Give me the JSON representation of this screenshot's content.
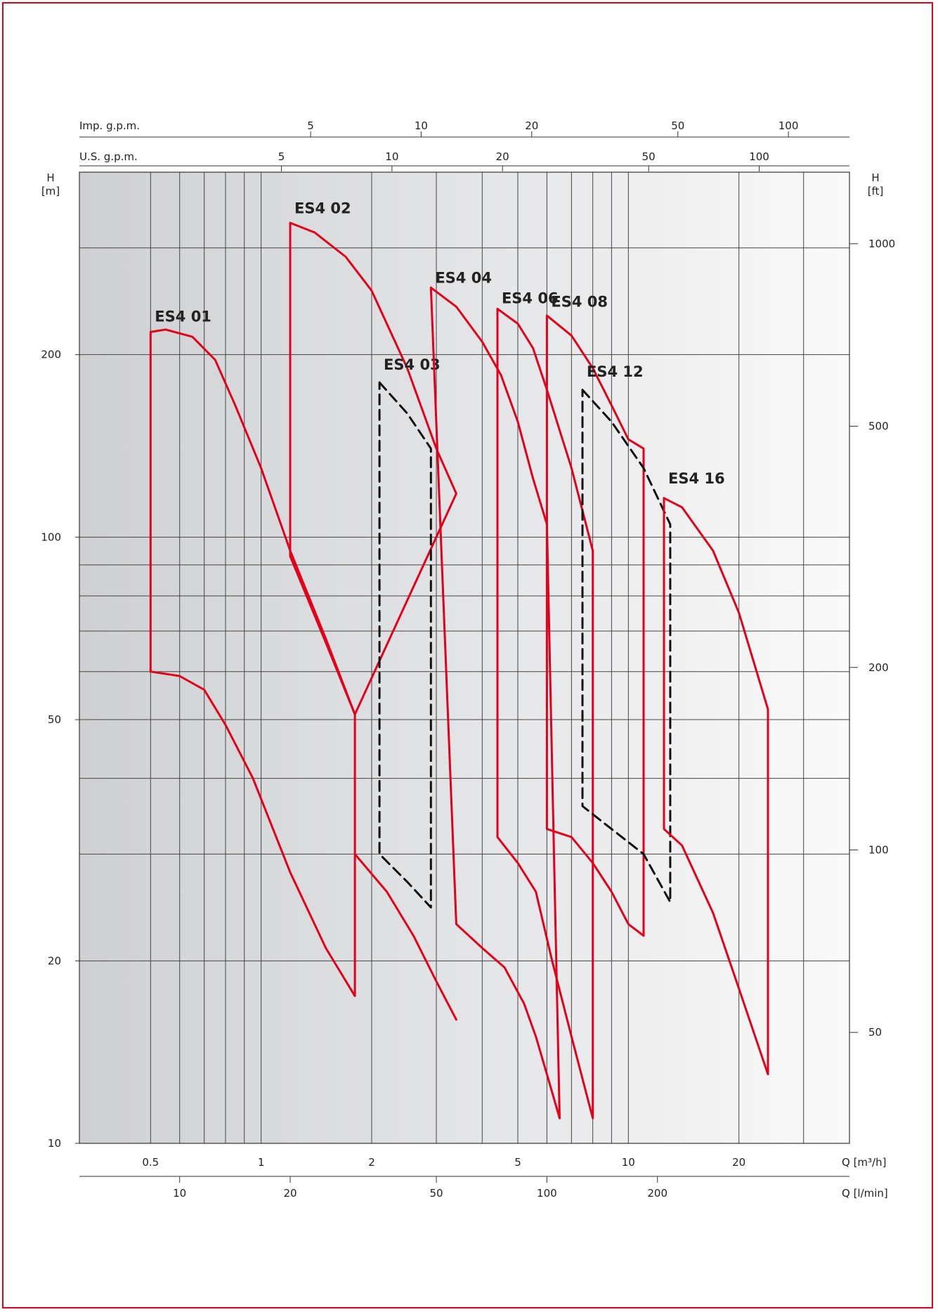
{
  "chart_data": {
    "type": "line",
    "x_scale": "log",
    "y_scale": "log",
    "xlim": [
      0.32,
      40
    ],
    "ylim": [
      10,
      400
    ],
    "grid": true,
    "legend": "none",
    "colors": {
      "red": "#e2001a",
      "dashed": "#111111",
      "grid": "#444444"
    },
    "axes": {
      "left": {
        "title": "H",
        "unit": "[m]",
        "ticks": [
          "200",
          "100",
          "50",
          "20",
          "10"
        ],
        "tick_values": [
          200,
          100,
          50,
          20,
          10
        ]
      },
      "right": {
        "title": "H",
        "unit": "[ft]",
        "ticks": [
          "1000",
          "500",
          "200",
          "100",
          "50"
        ],
        "tick_values": [
          1000,
          500,
          200,
          100,
          50
        ]
      },
      "bottom_m3h": {
        "label": "Q [m³/h]",
        "ticks": [
          "0.5",
          "1",
          "2",
          "5",
          "10",
          "20"
        ],
        "tick_values": [
          0.5,
          1,
          2,
          5,
          10,
          20
        ]
      },
      "bottom_lmin": {
        "label": "Q [l/min]",
        "ticks": [
          "10",
          "20",
          "50",
          "100",
          "200"
        ],
        "tick_values": [
          10,
          20,
          50,
          100,
          200
        ]
      },
      "top_usgpm": {
        "label": "U.S. g.p.m.",
        "ticks": [
          "5",
          "10",
          "20",
          "50",
          "100"
        ],
        "tick_values": [
          5,
          10,
          20,
          50,
          100
        ]
      },
      "top_impgpm": {
        "label": "Imp. g.p.m.",
        "ticks": [
          "5",
          "10",
          "20",
          "50",
          "100"
        ],
        "tick_values": [
          5,
          10,
          20,
          50,
          100
        ]
      }
    },
    "series": [
      {
        "name": "ES4 01",
        "style": "solid",
        "label_at": [
          0.5,
          222
        ],
        "top": [
          [
            0.5,
            218
          ],
          [
            0.55,
            220
          ],
          [
            0.65,
            214
          ],
          [
            0.75,
            196
          ],
          [
            0.85,
            165
          ],
          [
            1.0,
            130
          ],
          [
            1.2,
            95
          ],
          [
            1.5,
            68
          ],
          [
            1.8,
            51
          ]
        ],
        "bottom": [
          [
            0.5,
            60
          ],
          [
            0.6,
            59
          ],
          [
            0.7,
            56
          ],
          [
            0.8,
            49
          ],
          [
            0.95,
            40
          ],
          [
            1.2,
            28
          ],
          [
            1.5,
            21
          ],
          [
            1.8,
            17.5
          ]
        ]
      },
      {
        "name": "ES4 02",
        "style": "solid",
        "label_at": [
          1.2,
          335
        ],
        "top": [
          [
            1.2,
            330
          ],
          [
            1.4,
            318
          ],
          [
            1.7,
            290
          ],
          [
            2.0,
            255
          ],
          [
            2.5,
            190
          ],
          [
            3.0,
            140
          ],
          [
            3.4,
            118
          ]
        ],
        "bottom": [
          [
            1.2,
            93
          ],
          [
            1.5,
            67
          ],
          [
            1.8,
            51
          ]
        ]
      },
      {
        "name": "ES4 02",
        "style": "solid",
        "label_at": null,
        "top": [],
        "bottom": [
          [
            1.8,
            30
          ],
          [
            2.2,
            26
          ],
          [
            2.6,
            22
          ],
          [
            3.0,
            18.5
          ],
          [
            3.4,
            16
          ]
        ]
      },
      {
        "name": "ES4 03",
        "style": "dashed",
        "label_at": [
          2.1,
          185
        ],
        "top": [
          [
            2.1,
            180
          ],
          [
            2.5,
            160
          ],
          [
            2.9,
            140
          ]
        ],
        "bottom": [
          [
            2.1,
            30
          ],
          [
            2.5,
            27
          ],
          [
            2.9,
            24.5
          ]
        ]
      },
      {
        "name": "ES4 04",
        "style": "solid",
        "label_at": [
          2.9,
          257
        ],
        "top": [
          [
            2.9,
            258
          ],
          [
            3.4,
            240
          ],
          [
            4.0,
            210
          ],
          [
            4.5,
            185
          ],
          [
            5.0,
            155
          ],
          [
            5.5,
            125
          ],
          [
            6.0,
            105
          ]
        ],
        "bottom": [
          [
            3.4,
            23
          ],
          [
            4.0,
            21
          ],
          [
            4.6,
            19.5
          ],
          [
            5.2,
            17
          ],
          [
            5.6,
            15
          ],
          [
            6.0,
            13
          ],
          [
            6.5,
            11
          ]
        ]
      },
      {
        "name": "ES4 06",
        "style": "solid",
        "label_at": [
          4.4,
          238
        ],
        "top": [
          [
            4.4,
            238
          ],
          [
            5.0,
            225
          ],
          [
            5.5,
            205
          ],
          [
            6.0,
            175
          ],
          [
            7.0,
            130
          ],
          [
            8.0,
            95
          ]
        ],
        "bottom": [
          [
            4.4,
            32
          ],
          [
            5.0,
            29
          ],
          [
            5.6,
            26
          ],
          [
            6.2,
            20
          ],
          [
            7.0,
            15
          ],
          [
            8.0,
            11
          ]
        ]
      },
      {
        "name": "ES4 08",
        "style": "solid",
        "label_at": [
          6.0,
          235
        ],
        "top": [
          [
            6.0,
            232
          ],
          [
            7.0,
            215
          ],
          [
            8.0,
            190
          ],
          [
            9.0,
            165
          ],
          [
            10.0,
            145
          ],
          [
            11.0,
            140
          ]
        ],
        "bottom": [
          [
            6.0,
            33
          ],
          [
            7.0,
            32
          ],
          [
            8.0,
            29
          ],
          [
            9.0,
            26
          ],
          [
            10.0,
            23
          ],
          [
            11.0,
            22
          ]
        ]
      },
      {
        "name": "ES4 12",
        "style": "dashed",
        "label_at": [
          7.5,
          180
        ],
        "top": [
          [
            7.5,
            175
          ],
          [
            9.0,
            155
          ],
          [
            11.0,
            130
          ],
          [
            13.0,
            105
          ]
        ],
        "bottom": [
          [
            7.5,
            36
          ],
          [
            9.0,
            33
          ],
          [
            11.0,
            30
          ],
          [
            13.0,
            25
          ]
        ]
      },
      {
        "name": "ES4 16",
        "style": "solid",
        "label_at": [
          12.5,
          120
        ],
        "top": [
          [
            12.5,
            116
          ],
          [
            14.0,
            112
          ],
          [
            17.0,
            95
          ],
          [
            20.0,
            75
          ],
          [
            24.0,
            52
          ]
        ],
        "bottom": [
          [
            12.5,
            33
          ],
          [
            14.0,
            31
          ],
          [
            17.0,
            24
          ],
          [
            20.0,
            18
          ],
          [
            24.0,
            13
          ]
        ]
      }
    ]
  }
}
